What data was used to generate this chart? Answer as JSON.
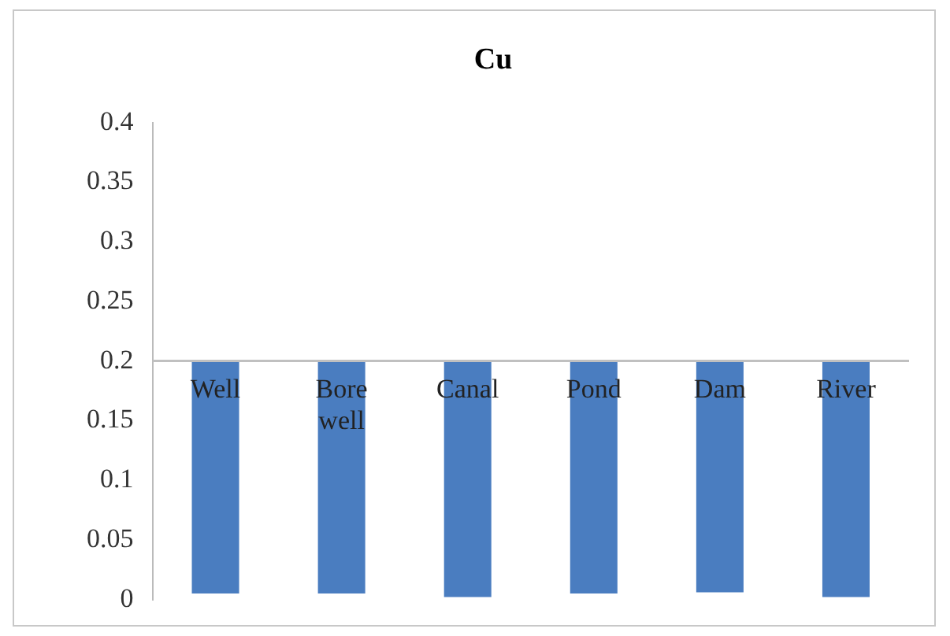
{
  "chart_data": {
    "type": "bar",
    "title": "Cu",
    "categories": [
      "Well",
      "Bore well",
      "Canal",
      "Pond",
      "Dam",
      "River"
    ],
    "base": [
      0.2,
      0.2,
      0.2,
      0.2,
      0.2,
      0.2
    ],
    "values": [
      -0.195,
      -0.195,
      -0.198,
      -0.195,
      -0.194,
      -0.198
    ],
    "color": "#4a7dc0",
    "ylim": [
      0,
      0.4
    ],
    "yticks": [
      0,
      0.05,
      0.1,
      0.15,
      0.2,
      0.25,
      0.3,
      0.35,
      0.4
    ],
    "grid": false,
    "legend": false
  }
}
